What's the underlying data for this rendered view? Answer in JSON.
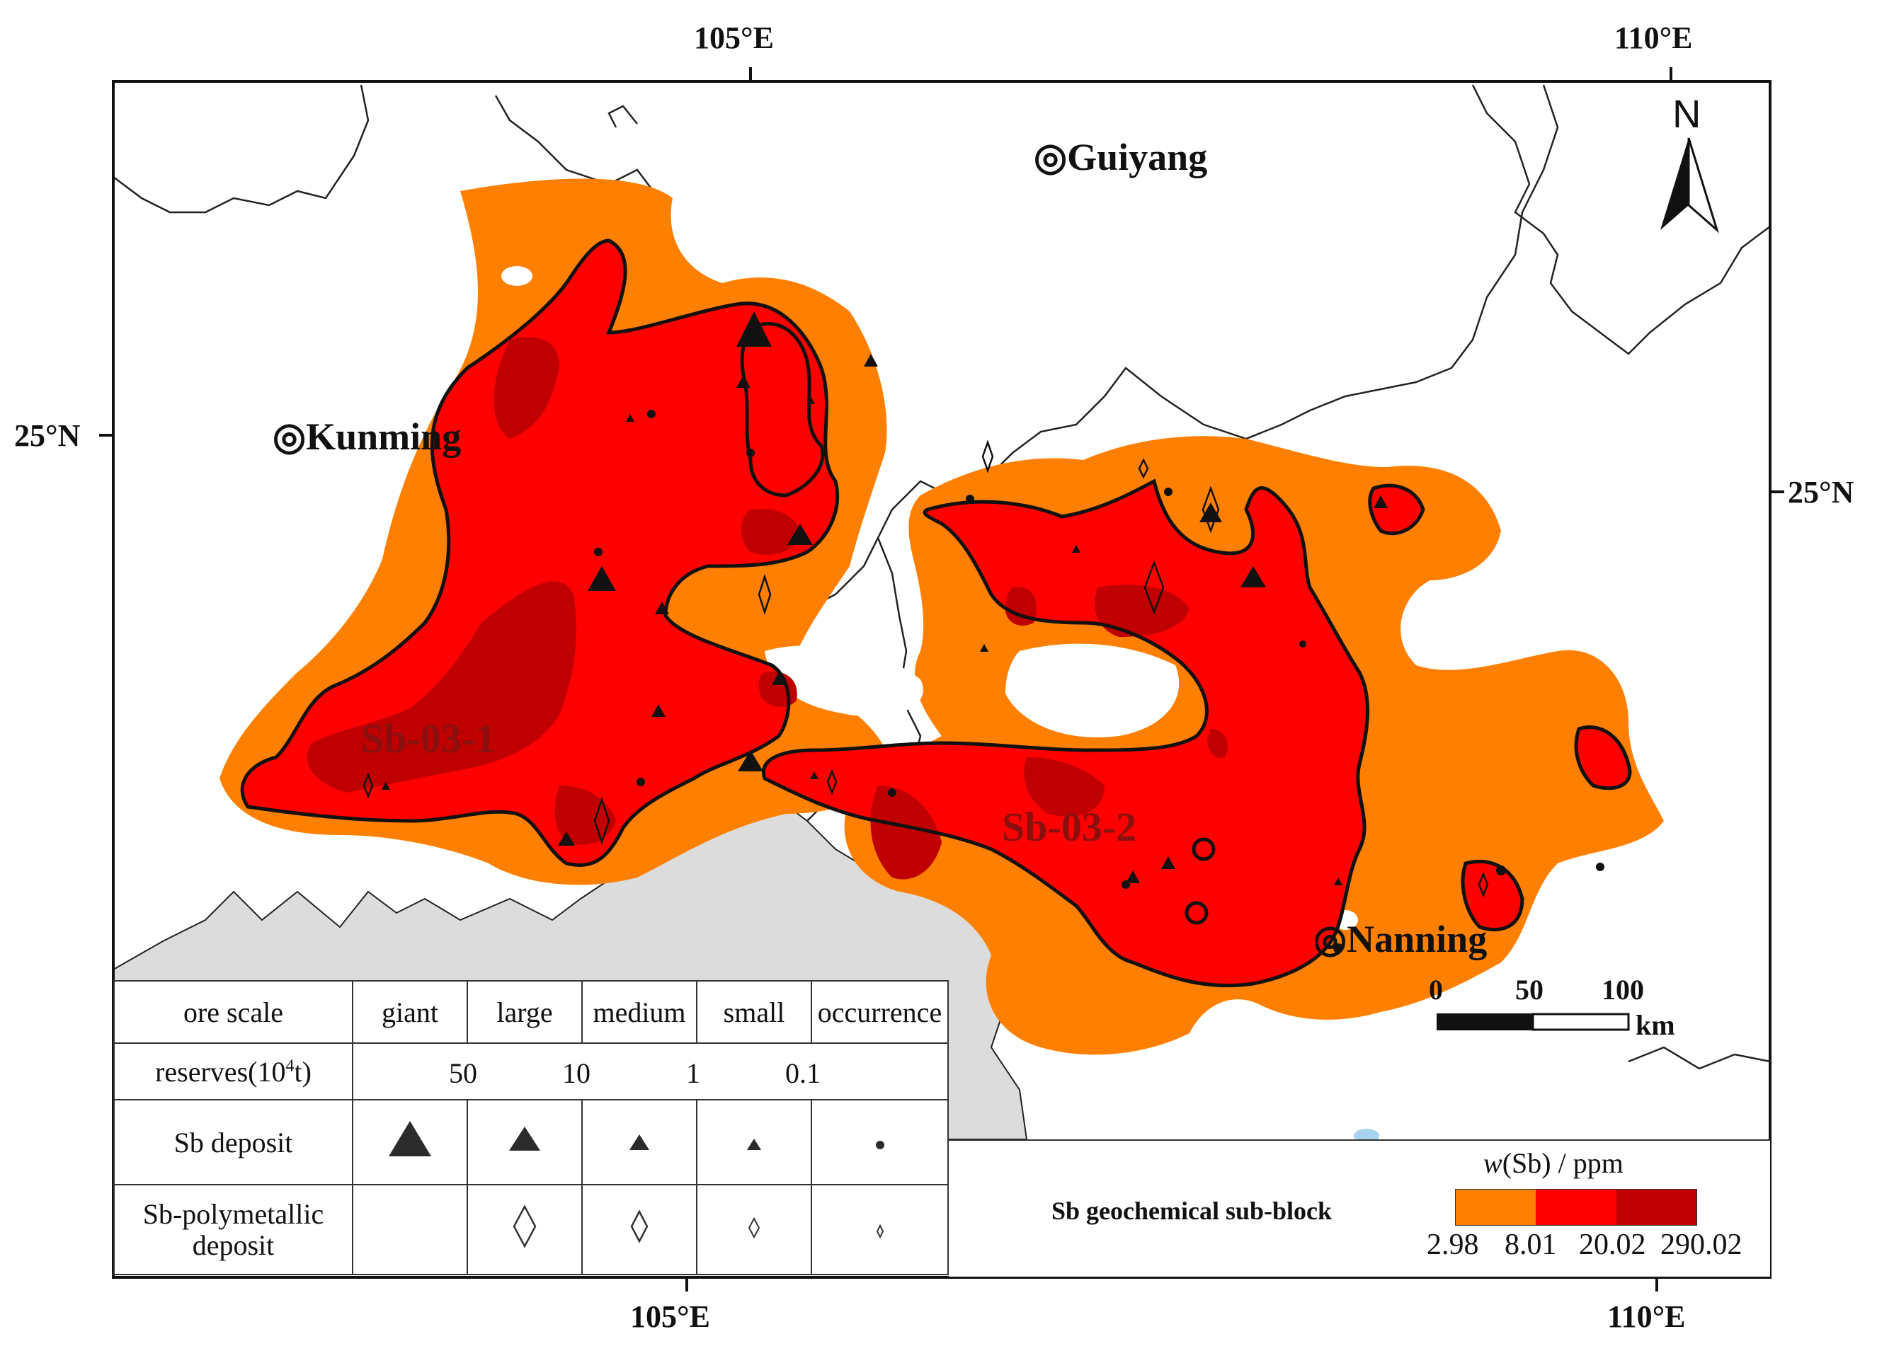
{
  "coordinates": {
    "top_105": "105°E",
    "top_110": "110°E",
    "bottom_105": "105°E",
    "bottom_110": "110°E",
    "left_25": "25°N",
    "right_25": "25°N"
  },
  "north_arrow": "N",
  "cities": [
    {
      "name": "◎Guiyang"
    },
    {
      "name": "◎Kunming"
    },
    {
      "name": "◎Nanning"
    }
  ],
  "blocks": [
    "Sb-03-1",
    "Sb-03-2"
  ],
  "scale_bar": {
    "ticks": [
      "0",
      "50",
      "100"
    ],
    "unit": "km"
  },
  "legend_table": {
    "header": [
      "ore scale",
      "giant",
      "large",
      "medium",
      "small",
      "occurrence"
    ],
    "reserves_label": "reserves(10",
    "reserves_sup": "4",
    "reserves_unit": "t)",
    "reserves_values": [
      "50",
      "10",
      "1",
      "0.1"
    ],
    "sb_deposit": "Sb deposit",
    "sb_poly_line1": "Sb-polymetallic",
    "sb_poly_line2": "deposit"
  },
  "sub_block_legend": "Sb geochemical sub-block",
  "concentration": {
    "title_italic": "w",
    "title_rest": "(Sb) / ppm",
    "ticks": [
      "2.98",
      "8.01",
      "20.02",
      "290.02"
    ],
    "colors": [
      "#ff8000",
      "#ff0000",
      "#c00000"
    ]
  },
  "colors": {
    "level1": "#ff8000",
    "level2": "#ff0000",
    "level3": "#c00000",
    "outside": "#dcdcdc",
    "boundary": "#111111"
  }
}
